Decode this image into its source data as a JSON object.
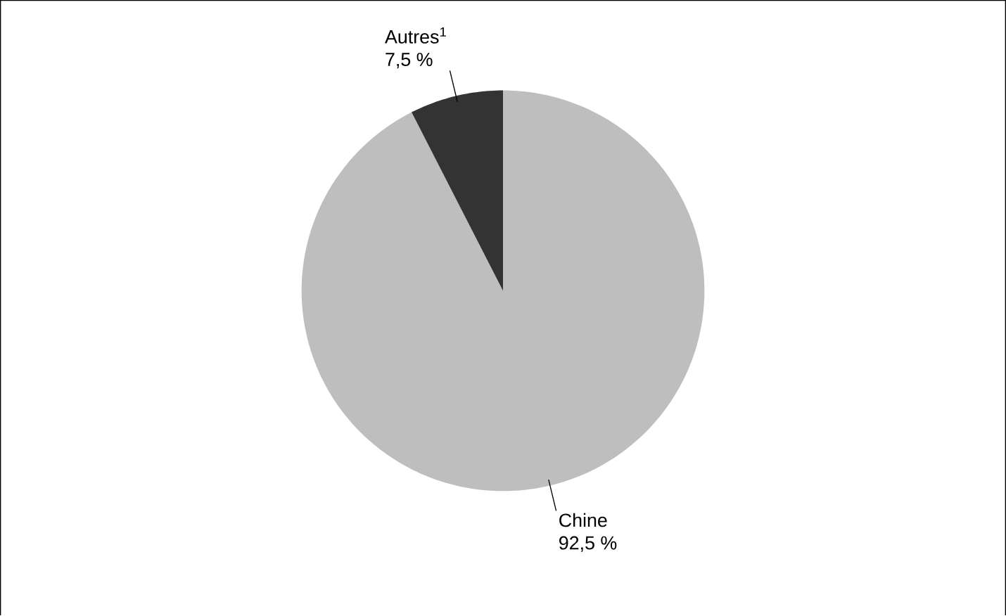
{
  "chart_data": {
    "type": "pie",
    "categories": [
      "Chine",
      "Autres$^{1}$"
    ],
    "values": [
      92.5,
      7.5
    ],
    "colors": [
      "#bebebe",
      "#333333"
    ],
    "value_labels": [
      "92,5 %",
      "7,5 %"
    ]
  }
}
